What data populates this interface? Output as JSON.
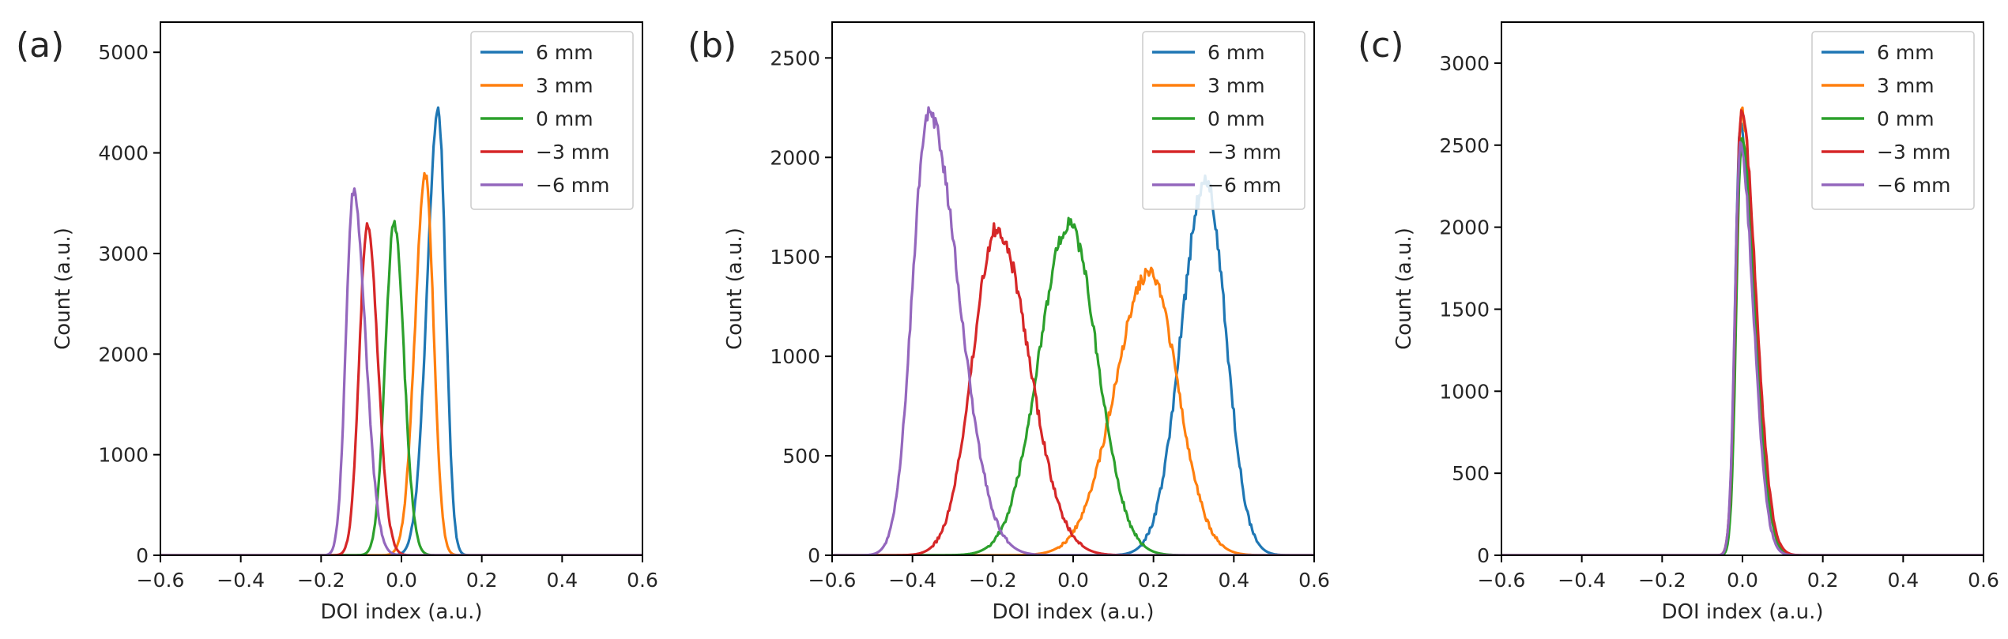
{
  "figure": {
    "title": ""
  },
  "chart_data": [
    {
      "type": "line",
      "panel_label": "(a)",
      "xlabel": "DOI index (a.u.)",
      "ylabel": "Count (a.u.)",
      "xlim": [
        -0.6,
        0.6
      ],
      "ylim": [
        0,
        5300
      ],
      "xticks": [
        -0.6,
        -0.4,
        -0.2,
        0.0,
        0.2,
        0.4,
        0.6
      ],
      "xtick_labels": [
        "−0.6",
        "−0.4",
        "−0.2",
        "0.0",
        "0.2",
        "0.4",
        "0.6"
      ],
      "yticks": [
        0,
        1000,
        2000,
        3000,
        4000,
        5000
      ],
      "ytick_labels": [
        "0",
        "1000",
        "2000",
        "3000",
        "4000",
        "5000"
      ],
      "legend_position": "top-right",
      "series": [
        {
          "name": "6 mm",
          "color": "#1f77b4",
          "peak": 0.092,
          "amplitude": 4400,
          "sigma_left": 0.028,
          "sigma_right": 0.018,
          "noise": 60
        },
        {
          "name": "3 mm",
          "color": "#ff7f0e",
          "peak": 0.06,
          "amplitude": 3780,
          "sigma_left": 0.026,
          "sigma_right": 0.02,
          "noise": 55
        },
        {
          "name": "0 mm",
          "color": "#2ca02c",
          "peak": -0.018,
          "amplitude": 3300,
          "sigma_left": 0.022,
          "sigma_right": 0.024,
          "noise": 55
        },
        {
          "name": "−3 mm",
          "color": "#d62728",
          "peak": -0.085,
          "amplitude": 3270,
          "sigma_left": 0.02,
          "sigma_right": 0.026,
          "noise": 50
        },
        {
          "name": "−6 mm",
          "color": "#9467bd",
          "peak": -0.12,
          "amplitude": 3620,
          "sigma_left": 0.018,
          "sigma_right": 0.03,
          "noise": 55
        }
      ]
    },
    {
      "type": "line",
      "panel_label": "(b)",
      "xlabel": "DOI index (a.u.)",
      "ylabel": "Count (a.u.)",
      "xlim": [
        -0.6,
        0.6
      ],
      "ylim": [
        0,
        2680
      ],
      "xticks": [
        -0.6,
        -0.4,
        -0.2,
        0.0,
        0.2,
        0.4,
        0.6
      ],
      "xtick_labels": [
        "−0.6",
        "−0.4",
        "−0.2",
        "0.0",
        "0.2",
        "0.4",
        "0.6"
      ],
      "yticks": [
        0,
        500,
        1000,
        1500,
        2000,
        2500
      ],
      "ytick_labels": [
        "0",
        "500",
        "1000",
        "1500",
        "2000",
        "2500"
      ],
      "legend_position": "top-right",
      "series": [
        {
          "name": "6 mm",
          "color": "#1f77b4",
          "peak": 0.33,
          "amplitude": 1880,
          "sigma_left": 0.06,
          "sigma_right": 0.05,
          "noise": 50
        },
        {
          "name": "3 mm",
          "color": "#ff7f0e",
          "peak": 0.19,
          "amplitude": 1420,
          "sigma_left": 0.085,
          "sigma_right": 0.07,
          "noise": 35
        },
        {
          "name": "0 mm",
          "color": "#2ca02c",
          "peak": -0.01,
          "amplitude": 1660,
          "sigma_left": 0.075,
          "sigma_right": 0.07,
          "noise": 40
        },
        {
          "name": "−3 mm",
          "color": "#d62728",
          "peak": -0.19,
          "amplitude": 1640,
          "sigma_left": 0.06,
          "sigma_right": 0.08,
          "noise": 40
        },
        {
          "name": "−6 mm",
          "color": "#9467bd",
          "peak": -0.36,
          "amplitude": 2220,
          "sigma_left": 0.04,
          "sigma_right": 0.075,
          "noise": 45
        }
      ]
    },
    {
      "type": "line",
      "panel_label": "(c)",
      "xlabel": "DOI index (a.u.)",
      "ylabel": "Count (a.u.)",
      "xlim": [
        -0.6,
        0.6
      ],
      "ylim": [
        0,
        3250
      ],
      "xticks": [
        -0.6,
        -0.4,
        -0.2,
        0.0,
        0.2,
        0.4,
        0.6
      ],
      "xtick_labels": [
        "−0.6",
        "−0.4",
        "−0.2",
        "0.0",
        "0.2",
        "0.4",
        "0.6"
      ],
      "yticks": [
        0,
        500,
        1000,
        1500,
        2000,
        2500,
        3000
      ],
      "ytick_labels": [
        "0",
        "500",
        "1000",
        "1500",
        "2000",
        "2500",
        "3000"
      ],
      "legend_position": "top-right",
      "series": [
        {
          "name": "6 mm",
          "color": "#1f77b4",
          "peak": -0.005,
          "amplitude": 2600,
          "sigma_left": 0.013,
          "sigma_right": 0.035,
          "noise": 40
        },
        {
          "name": "3 mm",
          "color": "#ff7f0e",
          "peak": -0.003,
          "amplitude": 2700,
          "sigma_left": 0.013,
          "sigma_right": 0.034,
          "noise": 40
        },
        {
          "name": "0 mm",
          "color": "#2ca02c",
          "peak": -0.002,
          "amplitude": 2550,
          "sigma_left": 0.013,
          "sigma_right": 0.034,
          "noise": 40
        },
        {
          "name": "−3 mm",
          "color": "#d62728",
          "peak": -0.003,
          "amplitude": 2700,
          "sigma_left": 0.014,
          "sigma_right": 0.036,
          "noise": 40
        },
        {
          "name": "−6 mm",
          "color": "#9467bd",
          "peak": -0.006,
          "amplitude": 2480,
          "sigma_left": 0.013,
          "sigma_right": 0.033,
          "noise": 40
        }
      ]
    }
  ]
}
